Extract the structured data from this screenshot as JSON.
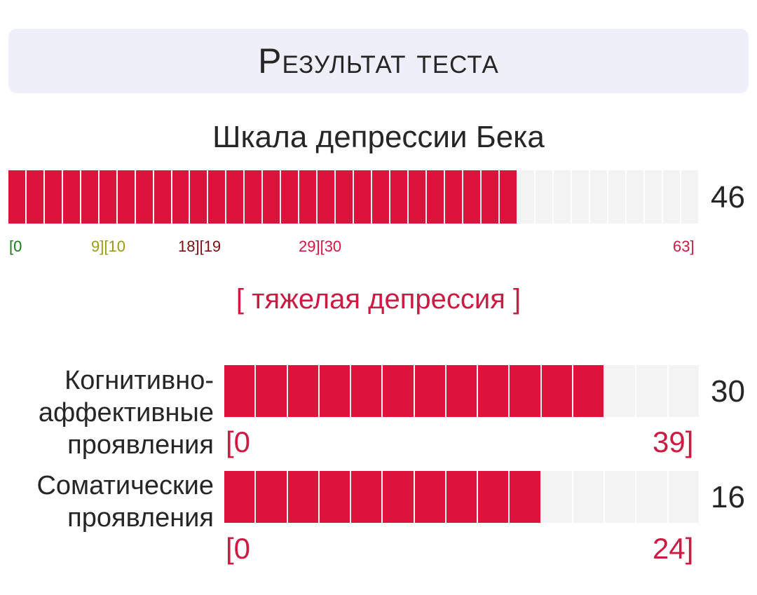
{
  "header": {
    "title": "Результат теста"
  },
  "main_scale": {
    "title": "Шкала депрессии Бека",
    "value": 46,
    "max": 63,
    "value_label": "46",
    "ranges": [
      {
        "text": "[0",
        "color": "#1a7a1a"
      },
      {
        "text": "9][10",
        "color": "#9a9a1a"
      },
      {
        "text": "18][19",
        "color": "#7a1010"
      },
      {
        "text": "29][30",
        "color": "#cc1a42"
      },
      {
        "text": "63]",
        "color": "#cc1a42"
      }
    ],
    "verdict": "[ тяжелая депрессия ]"
  },
  "subscales": [
    {
      "label_lines": [
        "Когнитивно-",
        "аффективные",
        "проявления"
      ],
      "value": 30,
      "max": 39,
      "value_label": "30",
      "range_min": "[0",
      "range_max": "39]"
    },
    {
      "label_lines": [
        "Соматические",
        "проявления"
      ],
      "value": 16,
      "max": 24,
      "value_label": "16",
      "range_min": "[0",
      "range_max": "24]"
    }
  ],
  "colors": {
    "fill": "#dc143c",
    "empty": "#f3f3f3",
    "accent": "#cc1a42"
  }
}
